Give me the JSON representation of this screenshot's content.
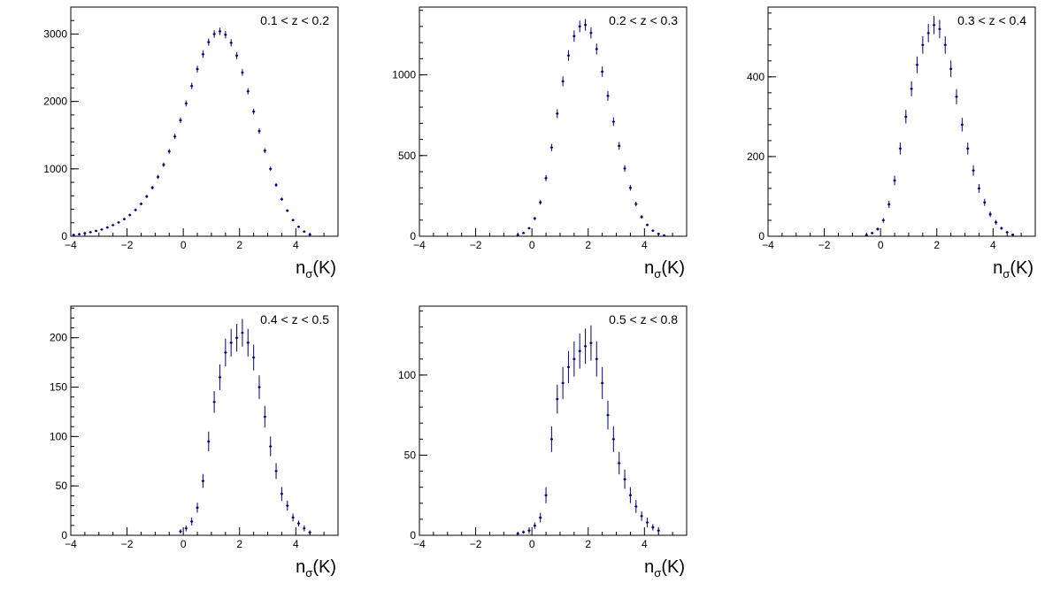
{
  "colors": {
    "marker": "#000080",
    "error_bar": "#1a1a7a",
    "axis": "#000000",
    "background": "#ffffff"
  },
  "chart_data": [
    {
      "type": "scatter",
      "title": "0.1 < z < 0.2",
      "xlabel": "n_σ(K)",
      "ylabel": "",
      "xlim": [
        -4,
        5.5
      ],
      "ylim": [
        0,
        3400
      ],
      "x_ticks": [
        -4,
        -2,
        0,
        2,
        4
      ],
      "y_ticks": [
        0,
        1000,
        2000,
        3000
      ],
      "grid": false,
      "series": [
        {
          "x": [
            -3.9,
            -3.7,
            -3.5,
            -3.3,
            -3.1,
            -2.9,
            -2.7,
            -2.5,
            -2.3,
            -2.1,
            -1.9,
            -1.7,
            -1.5,
            -1.3,
            -1.1,
            -0.9,
            -0.7,
            -0.5,
            -0.3,
            -0.1,
            0.1,
            0.3,
            0.5,
            0.7,
            0.9,
            1.1,
            1.3,
            1.5,
            1.7,
            1.9,
            2.1,
            2.3,
            2.5,
            2.7,
            2.9,
            3.1,
            3.3,
            3.5,
            3.7,
            3.9,
            4.1,
            4.3,
            4.5
          ],
          "y": [
            20,
            30,
            45,
            60,
            80,
            100,
            130,
            165,
            205,
            255,
            315,
            390,
            480,
            590,
            720,
            880,
            1060,
            1260,
            1480,
            1720,
            1970,
            2230,
            2480,
            2700,
            2880,
            3000,
            3040,
            2990,
            2870,
            2680,
            2430,
            2150,
            1850,
            1560,
            1270,
            1000,
            760,
            550,
            380,
            240,
            140,
            70,
            25
          ],
          "yerr": [
            5,
            6,
            7,
            8,
            9,
            10,
            12,
            13,
            14,
            16,
            18,
            20,
            22,
            24,
            27,
            30,
            33,
            36,
            39,
            42,
            44,
            47,
            50,
            52,
            54,
            55,
            55,
            55,
            54,
            52,
            49,
            46,
            43,
            40,
            36,
            32,
            28,
            24,
            20,
            16,
            12,
            9,
            5
          ]
        }
      ]
    },
    {
      "type": "scatter",
      "title": "0.2 < z < 0.3",
      "xlabel": "n_σ(K)",
      "ylabel": "",
      "xlim": [
        -4,
        5.5
      ],
      "ylim": [
        0,
        1420
      ],
      "x_ticks": [
        -4,
        -2,
        0,
        2,
        4
      ],
      "y_ticks": [
        0,
        500,
        1000
      ],
      "grid": false,
      "series": [
        {
          "x": [
            -0.5,
            -0.3,
            -0.1,
            0.1,
            0.3,
            0.5,
            0.7,
            0.9,
            1.1,
            1.3,
            1.5,
            1.7,
            1.9,
            2.1,
            2.3,
            2.5,
            2.7,
            2.9,
            3.1,
            3.3,
            3.5,
            3.7,
            3.9,
            4.1,
            4.3,
            4.5,
            4.7
          ],
          "y": [
            8,
            20,
            50,
            110,
            210,
            360,
            550,
            760,
            960,
            1120,
            1240,
            1300,
            1310,
            1260,
            1160,
            1020,
            870,
            710,
            560,
            420,
            300,
            200,
            120,
            70,
            35,
            15,
            5
          ],
          "yerr": [
            3,
            4,
            7,
            10,
            14,
            19,
            23,
            27,
            31,
            33,
            35,
            36,
            36,
            35,
            34,
            32,
            30,
            27,
            24,
            21,
            17,
            14,
            11,
            8,
            6,
            4,
            2
          ]
        }
      ]
    },
    {
      "type": "scatter",
      "title": "0.3 < z < 0.4",
      "xlabel": "n_σ(K)",
      "ylabel": "",
      "xlim": [
        -4,
        5.5
      ],
      "ylim": [
        0,
        575
      ],
      "x_ticks": [
        -4,
        -2,
        0,
        2,
        4
      ],
      "y_ticks": [
        0,
        200,
        400
      ],
      "grid": false,
      "series": [
        {
          "x": [
            -0.5,
            -0.3,
            -0.1,
            0.1,
            0.3,
            0.5,
            0.7,
            0.9,
            1.1,
            1.3,
            1.5,
            1.7,
            1.9,
            2.1,
            2.3,
            2.5,
            2.7,
            2.9,
            3.1,
            3.3,
            3.5,
            3.7,
            3.9,
            4.1,
            4.3,
            4.5,
            4.7
          ],
          "y": [
            3,
            8,
            18,
            40,
            80,
            140,
            220,
            300,
            370,
            430,
            480,
            510,
            530,
            520,
            480,
            420,
            350,
            280,
            220,
            165,
            120,
            85,
            55,
            35,
            20,
            10,
            4
          ],
          "yerr": [
            2,
            3,
            4,
            6,
            9,
            12,
            15,
            17,
            19,
            21,
            22,
            23,
            23,
            23,
            22,
            21,
            19,
            17,
            15,
            13,
            11,
            9,
            7,
            6,
            4,
            3,
            2
          ]
        }
      ]
    },
    {
      "type": "scatter",
      "title": "0.4 < z < 0.5",
      "xlabel": "n_σ(K)",
      "ylabel": "",
      "xlim": [
        -4,
        5.5
      ],
      "ylim": [
        0,
        232
      ],
      "x_ticks": [
        -4,
        -2,
        0,
        2,
        4
      ],
      "y_ticks": [
        0,
        50,
        100,
        150,
        200
      ],
      "grid": false,
      "series": [
        {
          "x": [
            -0.1,
            0.1,
            0.3,
            0.5,
            0.7,
            0.9,
            1.1,
            1.3,
            1.5,
            1.7,
            1.9,
            2.1,
            2.3,
            2.5,
            2.7,
            2.9,
            3.1,
            3.3,
            3.5,
            3.7,
            3.9,
            4.1,
            4.3,
            4.5
          ],
          "y": [
            4,
            7,
            14,
            28,
            55,
            95,
            135,
            160,
            185,
            195,
            200,
            205,
            195,
            180,
            150,
            120,
            90,
            65,
            42,
            30,
            18,
            12,
            7,
            3
          ],
          "yerr": [
            2,
            3,
            4,
            5,
            7,
            10,
            11,
            13,
            14,
            14,
            14,
            14,
            14,
            13,
            12,
            11,
            10,
            8,
            7,
            5,
            4,
            3,
            3,
            2
          ]
        }
      ]
    },
    {
      "type": "scatter",
      "title": "0.5 < z < 0.8",
      "xlabel": "n_σ(K)",
      "ylabel": "",
      "xlim": [
        -4,
        5.5
      ],
      "ylim": [
        0,
        143
      ],
      "x_ticks": [
        -4,
        -2,
        0,
        2,
        4
      ],
      "y_ticks": [
        0,
        50,
        100
      ],
      "grid": false,
      "series": [
        {
          "x": [
            -0.5,
            -0.3,
            -0.1,
            0.1,
            0.3,
            0.5,
            0.7,
            0.9,
            1.1,
            1.3,
            1.5,
            1.7,
            1.9,
            2.1,
            2.3,
            2.5,
            2.7,
            2.9,
            3.1,
            3.3,
            3.5,
            3.7,
            3.9,
            4.1,
            4.3,
            4.5
          ],
          "y": [
            1,
            2,
            3,
            6,
            11,
            25,
            60,
            85,
            95,
            105,
            110,
            115,
            118,
            120,
            110,
            95,
            75,
            60,
            45,
            35,
            25,
            18,
            12,
            8,
            5,
            3
          ],
          "yerr": [
            1,
            1,
            2,
            2,
            3,
            5,
            8,
            9,
            10,
            10,
            11,
            11,
            11,
            11,
            11,
            10,
            9,
            8,
            7,
            6,
            5,
            4,
            3,
            3,
            2,
            2
          ]
        }
      ]
    }
  ]
}
